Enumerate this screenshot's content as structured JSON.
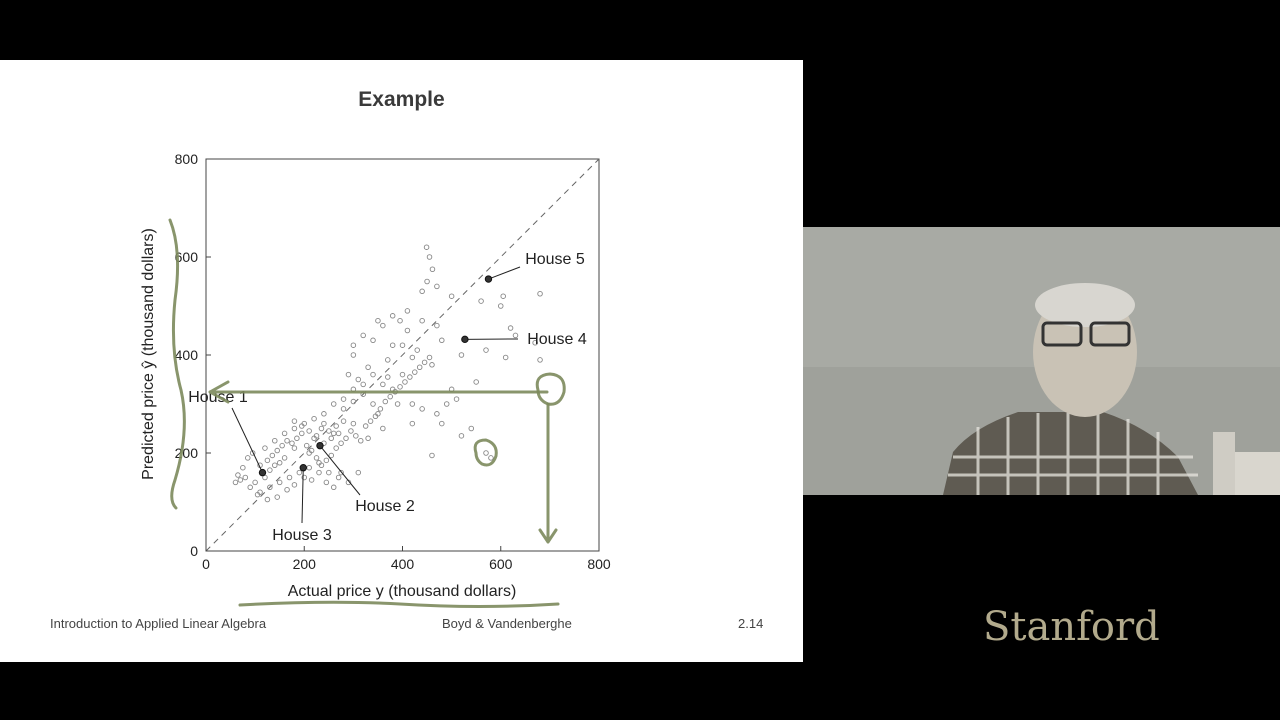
{
  "slide": {
    "title": "Example",
    "footer_left": "Introduction to Applied Linear Algebra",
    "footer_center": "Boyd & Vandenberghe",
    "footer_right": "2.14"
  },
  "chart_data": {
    "type": "scatter",
    "xlabel": "Actual price y (thousand dollars)",
    "ylabel": "Predicted price ŷ (thousand dollars)",
    "xlim": [
      0,
      800
    ],
    "ylim": [
      0,
      800
    ],
    "xticks": [
      0,
      200,
      400,
      600,
      800
    ],
    "yticks": [
      0,
      200,
      400,
      600,
      800
    ],
    "reference_line": "y = x (dashed)",
    "highlighted": [
      {
        "label": "House 1",
        "x": 115,
        "y": 160
      },
      {
        "label": "House 2",
        "x": 232,
        "y": 215
      },
      {
        "label": "House 3",
        "x": 198,
        "y": 170
      },
      {
        "label": "House 4",
        "x": 527,
        "y": 432
      },
      {
        "label": "House 5",
        "x": 575,
        "y": 555
      }
    ],
    "points": [
      [
        449,
        620
      ],
      [
        455,
        600
      ],
      [
        461,
        575
      ],
      [
        450,
        550
      ],
      [
        470,
        540
      ],
      [
        440,
        530
      ],
      [
        500,
        520
      ],
      [
        560,
        510
      ],
      [
        600,
        500
      ],
      [
        605,
        520
      ],
      [
        680,
        525
      ],
      [
        620,
        455
      ],
      [
        630,
        440
      ],
      [
        670,
        425
      ],
      [
        680,
        390
      ],
      [
        610,
        395
      ],
      [
        570,
        410
      ],
      [
        520,
        400
      ],
      [
        480,
        430
      ],
      [
        430,
        410
      ],
      [
        460,
        380
      ],
      [
        420,
        395
      ],
      [
        380,
        420
      ],
      [
        395,
        470
      ],
      [
        410,
        490
      ],
      [
        360,
        460
      ],
      [
        340,
        430
      ],
      [
        300,
        400
      ],
      [
        310,
        350
      ],
      [
        290,
        360
      ],
      [
        320,
        320
      ],
      [
        340,
        300
      ],
      [
        350,
        280
      ],
      [
        380,
        330
      ],
      [
        400,
        360
      ],
      [
        390,
        300
      ],
      [
        420,
        300
      ],
      [
        440,
        290
      ],
      [
        470,
        280
      ],
      [
        500,
        330
      ],
      [
        480,
        260
      ],
      [
        420,
        260
      ],
      [
        360,
        250
      ],
      [
        330,
        230
      ],
      [
        300,
        260
      ],
      [
        280,
        290
      ],
      [
        260,
        240
      ],
      [
        240,
        260
      ],
      [
        220,
        230
      ],
      [
        210,
        200
      ],
      [
        180,
        210
      ],
      [
        160,
        190
      ],
      [
        150,
        180
      ],
      [
        140,
        175
      ],
      [
        130,
        165
      ],
      [
        120,
        150
      ],
      [
        100,
        140
      ],
      [
        90,
        130
      ],
      [
        80,
        150
      ],
      [
        70,
        145
      ],
      [
        60,
        140
      ],
      [
        65,
        155
      ],
      [
        75,
        170
      ],
      [
        85,
        190
      ],
      [
        95,
        200
      ],
      [
        110,
        175
      ],
      [
        125,
        185
      ],
      [
        135,
        195
      ],
      [
        145,
        205
      ],
      [
        155,
        215
      ],
      [
        165,
        225
      ],
      [
        175,
        220
      ],
      [
        185,
        230
      ],
      [
        195,
        240
      ],
      [
        205,
        215
      ],
      [
        215,
        205
      ],
      [
        225,
        190
      ],
      [
        235,
        175
      ],
      [
        245,
        185
      ],
      [
        255,
        195
      ],
      [
        265,
        210
      ],
      [
        275,
        220
      ],
      [
        285,
        230
      ],
      [
        295,
        245
      ],
      [
        305,
        235
      ],
      [
        315,
        225
      ],
      [
        325,
        255
      ],
      [
        335,
        265
      ],
      [
        345,
        275
      ],
      [
        355,
        290
      ],
      [
        365,
        305
      ],
      [
        375,
        315
      ],
      [
        385,
        325
      ],
      [
        395,
        335
      ],
      [
        405,
        345
      ],
      [
        415,
        355
      ],
      [
        425,
        365
      ],
      [
        435,
        375
      ],
      [
        445,
        385
      ],
      [
        455,
        395
      ],
      [
        110,
        120
      ],
      [
        130,
        130
      ],
      [
        150,
        140
      ],
      [
        170,
        150
      ],
      [
        190,
        160
      ],
      [
        210,
        170
      ],
      [
        230,
        180
      ],
      [
        250,
        160
      ],
      [
        270,
        150
      ],
      [
        290,
        140
      ],
      [
        310,
        160
      ],
      [
        120,
        210
      ],
      [
        140,
        225
      ],
      [
        160,
        240
      ],
      [
        180,
        250
      ],
      [
        200,
        260
      ],
      [
        220,
        270
      ],
      [
        240,
        280
      ],
      [
        260,
        300
      ],
      [
        280,
        310
      ],
      [
        300,
        330
      ],
      [
        320,
        340
      ],
      [
        570,
        200
      ],
      [
        580,
        190
      ],
      [
        460,
        195
      ],
      [
        520,
        235
      ],
      [
        540,
        250
      ],
      [
        490,
        300
      ],
      [
        510,
        310
      ],
      [
        550,
        345
      ],
      [
        360,
        340
      ],
      [
        370,
        355
      ],
      [
        330,
        375
      ],
      [
        300,
        420
      ],
      [
        320,
        440
      ],
      [
        350,
        470
      ],
      [
        380,
        480
      ],
      [
        410,
        450
      ],
      [
        440,
        470
      ],
      [
        470,
        460
      ],
      [
        400,
        420
      ],
      [
        370,
        390
      ],
      [
        340,
        360
      ],
      [
        300,
        305
      ],
      [
        200,
        150
      ],
      [
        215,
        145
      ],
      [
        230,
        160
      ],
      [
        245,
        140
      ],
      [
        260,
        130
      ],
      [
        275,
        160
      ],
      [
        180,
        135
      ],
      [
        165,
        125
      ],
      [
        145,
        110
      ],
      [
        125,
        105
      ],
      [
        105,
        115
      ],
      [
        235,
        250
      ],
      [
        250,
        245
      ],
      [
        265,
        255
      ],
      [
        280,
        265
      ],
      [
        255,
        230
      ],
      [
        270,
        240
      ],
      [
        240,
        220
      ],
      [
        225,
        235
      ],
      [
        210,
        245
      ],
      [
        195,
        255
      ],
      [
        180,
        265
      ]
    ]
  },
  "annotations": {
    "description": "handwritten pen marks in olive green: vertical brace along y-axis, underline below x-label, horizontal arrow at ~320 to y-axis, circle at (700,330) with arrow down to x-axis at 700, small circle near (575,200)"
  }
}
